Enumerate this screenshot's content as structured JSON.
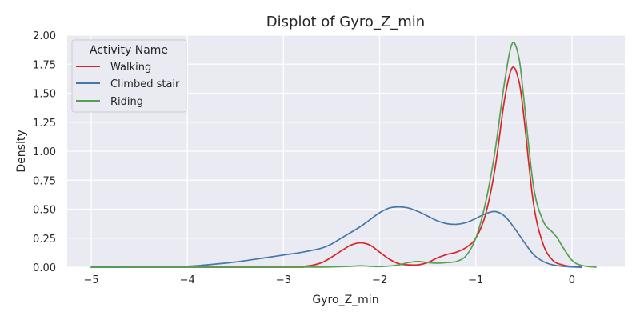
{
  "chart_data": {
    "type": "line",
    "title": "Displot of Gyro_Z_min",
    "xlabel": "Gyro_Z_min",
    "ylabel": "Density",
    "xlim": [
      -5.25,
      0.55
    ],
    "ylim": [
      0,
      2.0
    ],
    "x_ticks": [
      -5,
      -4,
      -3,
      -2,
      -1,
      0
    ],
    "x_tick_labels": [
      "−5",
      "−4",
      "−3",
      "−2",
      "−1",
      "0"
    ],
    "y_ticks": [
      0,
      0.25,
      0.5,
      0.75,
      1.0,
      1.25,
      1.5,
      1.75,
      2.0
    ],
    "y_tick_labels": [
      "0.00",
      "0.25",
      "0.50",
      "0.75",
      "1.00",
      "1.25",
      "1.50",
      "1.75",
      "2.00"
    ],
    "grid": true,
    "legend": {
      "title": "Activity Name",
      "position": "top-left"
    },
    "series": [
      {
        "name": "Walking",
        "color": "#d62728",
        "points": [
          [
            -5.0,
            0
          ],
          [
            -3.0,
            0
          ],
          [
            -2.8,
            0.005
          ],
          [
            -2.6,
            0.04
          ],
          [
            -2.4,
            0.14
          ],
          [
            -2.3,
            0.19
          ],
          [
            -2.2,
            0.21
          ],
          [
            -2.1,
            0.19
          ],
          [
            -2.0,
            0.13
          ],
          [
            -1.9,
            0.07
          ],
          [
            -1.8,
            0.03
          ],
          [
            -1.7,
            0.02
          ],
          [
            -1.6,
            0.02
          ],
          [
            -1.5,
            0.04
          ],
          [
            -1.4,
            0.08
          ],
          [
            -1.3,
            0.11
          ],
          [
            -1.2,
            0.13
          ],
          [
            -1.1,
            0.17
          ],
          [
            -1.0,
            0.25
          ],
          [
            -0.9,
            0.45
          ],
          [
            -0.8,
            0.85
          ],
          [
            -0.7,
            1.45
          ],
          [
            -0.62,
            1.72
          ],
          [
            -0.55,
            1.6
          ],
          [
            -0.5,
            1.3
          ],
          [
            -0.4,
            0.55
          ],
          [
            -0.3,
            0.2
          ],
          [
            -0.2,
            0.06
          ],
          [
            -0.1,
            0.02
          ],
          [
            0.0,
            0.005
          ],
          [
            0.1,
            0
          ]
        ]
      },
      {
        "name": "Climbed stair",
        "color": "#4477aa",
        "points": [
          [
            -5.0,
            0
          ],
          [
            -4.5,
            0.002
          ],
          [
            -4.0,
            0.008
          ],
          [
            -3.8,
            0.02
          ],
          [
            -3.5,
            0.045
          ],
          [
            -3.2,
            0.08
          ],
          [
            -3.0,
            0.105
          ],
          [
            -2.8,
            0.13
          ],
          [
            -2.6,
            0.165
          ],
          [
            -2.5,
            0.2
          ],
          [
            -2.4,
            0.25
          ],
          [
            -2.2,
            0.35
          ],
          [
            -2.1,
            0.41
          ],
          [
            -2.0,
            0.47
          ],
          [
            -1.9,
            0.51
          ],
          [
            -1.8,
            0.52
          ],
          [
            -1.7,
            0.51
          ],
          [
            -1.6,
            0.48
          ],
          [
            -1.5,
            0.44
          ],
          [
            -1.4,
            0.4
          ],
          [
            -1.3,
            0.375
          ],
          [
            -1.2,
            0.37
          ],
          [
            -1.1,
            0.385
          ],
          [
            -1.0,
            0.42
          ],
          [
            -0.9,
            0.46
          ],
          [
            -0.8,
            0.48
          ],
          [
            -0.7,
            0.44
          ],
          [
            -0.6,
            0.34
          ],
          [
            -0.5,
            0.22
          ],
          [
            -0.4,
            0.11
          ],
          [
            -0.3,
            0.05
          ],
          [
            -0.2,
            0.02
          ],
          [
            -0.1,
            0.008
          ],
          [
            0.0,
            0.002
          ],
          [
            0.1,
            0
          ]
        ]
      },
      {
        "name": "Riding",
        "color": "#55a052",
        "points": [
          [
            -5.0,
            0
          ],
          [
            -3.0,
            0
          ],
          [
            -2.5,
            0.002
          ],
          [
            -2.3,
            0.008
          ],
          [
            -2.2,
            0.012
          ],
          [
            -2.1,
            0.008
          ],
          [
            -2.0,
            0.005
          ],
          [
            -1.9,
            0.01
          ],
          [
            -1.8,
            0.02
          ],
          [
            -1.7,
            0.04
          ],
          [
            -1.6,
            0.05
          ],
          [
            -1.5,
            0.04
          ],
          [
            -1.4,
            0.035
          ],
          [
            -1.3,
            0.04
          ],
          [
            -1.2,
            0.05
          ],
          [
            -1.1,
            0.1
          ],
          [
            -1.0,
            0.25
          ],
          [
            -0.9,
            0.55
          ],
          [
            -0.8,
            1.0
          ],
          [
            -0.7,
            1.6
          ],
          [
            -0.62,
            1.93
          ],
          [
            -0.55,
            1.8
          ],
          [
            -0.5,
            1.45
          ],
          [
            -0.4,
            0.7
          ],
          [
            -0.3,
            0.4
          ],
          [
            -0.2,
            0.3
          ],
          [
            -0.15,
            0.25
          ],
          [
            -0.1,
            0.18
          ],
          [
            0.0,
            0.06
          ],
          [
            0.1,
            0.015
          ],
          [
            0.25,
            0
          ]
        ]
      }
    ]
  }
}
